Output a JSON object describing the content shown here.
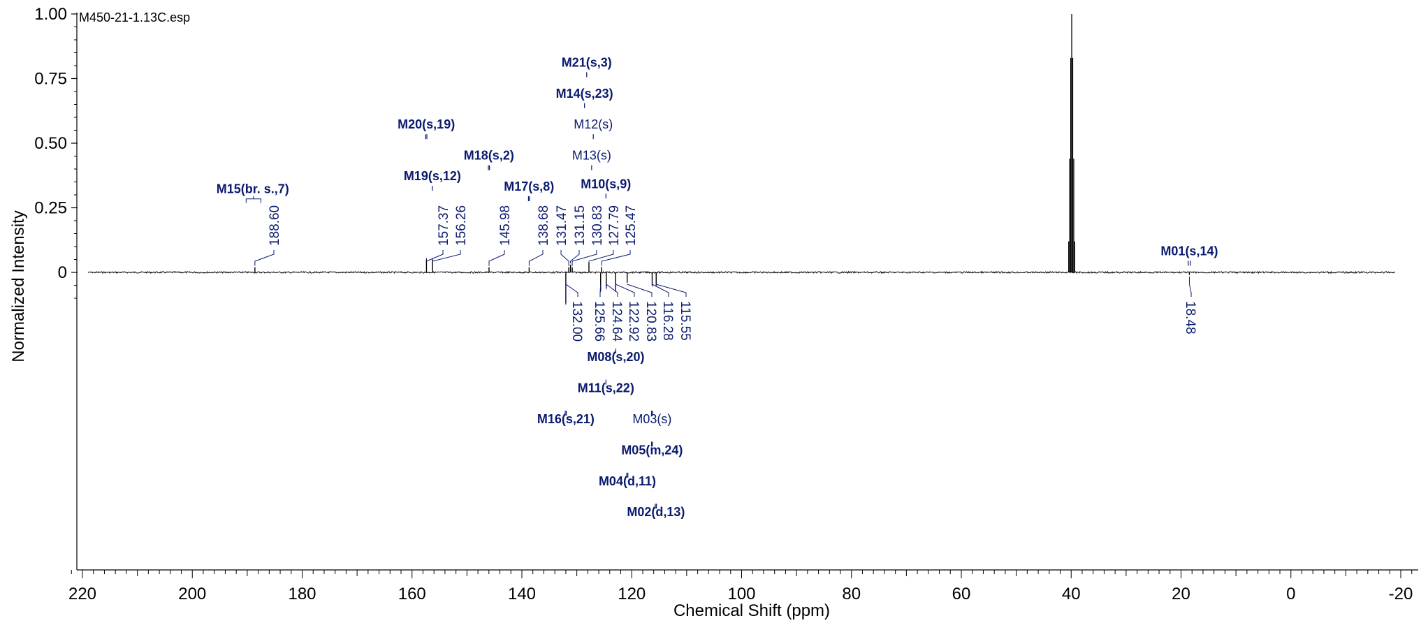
{
  "file_label": "M450-21-1.13C.esp",
  "chart_data": {
    "type": "line",
    "xlabel": "Chemical Shift (ppm)",
    "ylabel": "Normalized Intensity",
    "x_ticks": [
      220,
      200,
      180,
      160,
      140,
      120,
      100,
      80,
      60,
      40,
      20,
      0,
      -20
    ],
    "y_ticks": [
      1.0,
      0.75,
      0.5,
      0.25,
      0
    ],
    "y_tick_labels": [
      "1.00",
      "0.75",
      "0.50",
      "0.25",
      "0"
    ],
    "xlim": [
      220,
      -20
    ],
    "ylim": [
      -1.15,
      1.0
    ],
    "spectrum_range": [
      219,
      -19
    ],
    "solvent_peak": {
      "x": 39.9,
      "height": 1.0
    },
    "peaks": [
      {
        "x": 188.6,
        "label": "188.60",
        "dir": "up",
        "height": 0.02
      },
      {
        "x": 157.37,
        "label": "157.37",
        "dir": "up",
        "height": 0.05
      },
      {
        "x": 156.26,
        "label": "156.26",
        "dir": "up",
        "height": 0.05
      },
      {
        "x": 145.98,
        "label": "145.98",
        "dir": "up",
        "height": 0.02
      },
      {
        "x": 138.68,
        "label": "138.68",
        "dir": "up",
        "height": 0.02
      },
      {
        "x": 131.47,
        "label": "131.47",
        "dir": "up",
        "height": 0.02
      },
      {
        "x": 131.15,
        "label": "131.15",
        "dir": "up",
        "height": 0.03
      },
      {
        "x": 130.83,
        "label": "130.83",
        "dir": "up",
        "height": 0.02
      },
      {
        "x": 127.79,
        "label": "127.79",
        "dir": "up",
        "height": 0.04
      },
      {
        "x": 125.47,
        "label": "125.47",
        "dir": "up",
        "height": 0.02
      },
      {
        "x": 132.0,
        "label": "132.00",
        "dir": "down",
        "height": 0.12
      },
      {
        "x": 125.66,
        "label": "125.66",
        "dir": "down",
        "height": 0.07
      },
      {
        "x": 124.64,
        "label": "124.64",
        "dir": "down",
        "height": 0.06
      },
      {
        "x": 122.92,
        "label": "122.92",
        "dir": "down",
        "height": 0.07
      },
      {
        "x": 120.83,
        "label": "120.83",
        "dir": "down",
        "height": 0.04
      },
      {
        "x": 116.28,
        "label": "116.28",
        "dir": "down",
        "height": 0.05
      },
      {
        "x": 115.55,
        "label": "115.55",
        "dir": "down",
        "height": 0.05
      },
      {
        "x": 18.48,
        "label": "18.48",
        "dir": "down",
        "height": 0.01
      }
    ],
    "multiplets": [
      {
        "label": "M21(s,3)",
        "x": 128.2,
        "y": 0.78,
        "bold": true,
        "mark_x": [
          128.2
        ]
      },
      {
        "label": "M14(s,23)",
        "x": 128.6,
        "y": 0.66,
        "bold": true,
        "mark_x": [
          128.6
        ]
      },
      {
        "label": "M12(s)",
        "x": 127.0,
        "y": 0.54,
        "bold": false,
        "mark_x": [
          127.0
        ]
      },
      {
        "label": "M20(s,19)",
        "x": 157.4,
        "y": 0.54,
        "bold": true,
        "mark_x": [
          157.3,
          157.5
        ]
      },
      {
        "label": "M18(s,2)",
        "x": 146.0,
        "y": 0.42,
        "bold": true,
        "mark_x": [
          145.9,
          146.1
        ]
      },
      {
        "label": "M13(s)",
        "x": 127.3,
        "y": 0.42,
        "bold": false,
        "mark_x": [
          127.3
        ]
      },
      {
        "label": "M19(s,12)",
        "x": 156.3,
        "y": 0.34,
        "bold": true,
        "mark_x": [
          156.3
        ]
      },
      {
        "label": "M17(s,8)",
        "x": 138.7,
        "y": 0.3,
        "bold": true,
        "mark_x": [
          138.6,
          138.8
        ]
      },
      {
        "label": "M10(s,9)",
        "x": 124.7,
        "y": 0.31,
        "bold": true,
        "mark_x": [
          124.7
        ]
      },
      {
        "label": "M15(br. s.,7)",
        "x": 189.0,
        "y": 0.29,
        "bold": true,
        "mark_x": [
          190.2,
          187.5
        ],
        "bracket": true
      },
      {
        "label": "M01(s,14)",
        "x": 18.48,
        "y": 0.05,
        "bold": true,
        "mark_x": [
          18.3,
          18.7
        ]
      },
      {
        "label": "M08(s,20)",
        "x": 122.9,
        "y": -0.36,
        "bold": true,
        "mark_x": [
          122.9
        ]
      },
      {
        "label": "M11(s,22)",
        "x": 124.7,
        "y": -0.48,
        "bold": true,
        "mark_x": [
          124.7
        ]
      },
      {
        "label": "M16(s,21)",
        "x": 132.0,
        "y": -0.6,
        "bold": true,
        "mark_x": [
          131.9,
          132.1
        ]
      },
      {
        "label": "M03(s)",
        "x": 116.3,
        "y": -0.6,
        "bold": false,
        "mark_x": [
          116.2,
          116.4
        ]
      },
      {
        "label": "M05(m,24)",
        "x": 116.3,
        "y": -0.72,
        "bold": true,
        "mark_x": [
          116.2,
          116.4,
          125.7,
          125.9
        ]
      },
      {
        "label": "M04(d,11)",
        "x": 120.8,
        "y": -0.84,
        "bold": true,
        "mark_x": [
          120.7,
          120.9
        ]
      },
      {
        "label": "M02(d,13)",
        "x": 115.6,
        "y": -0.96,
        "bold": true,
        "mark_x": [
          115.5,
          115.7
        ]
      }
    ]
  }
}
